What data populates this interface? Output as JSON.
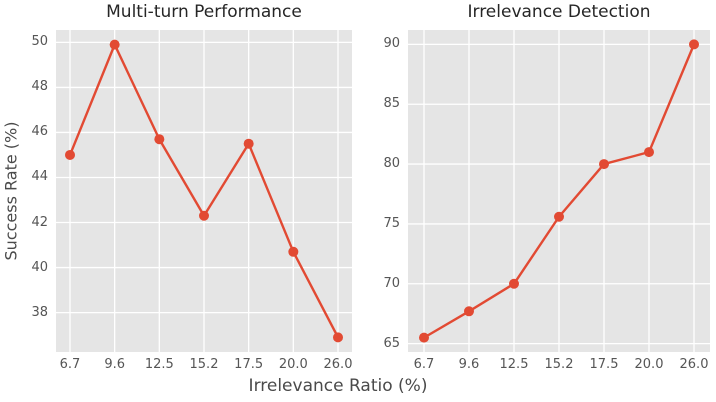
{
  "figure": {
    "background": "#ffffff",
    "plot_background": "#e5e5e5",
    "grid_color": "#ffffff",
    "line_color": "#e24a33",
    "tick_color": "#555555",
    "title_color": "#262626",
    "xlabel": "Irrelevance Ratio (%)",
    "ylabel": "Success Rate (%)"
  },
  "chart_data": [
    {
      "type": "line",
      "title": "Multi-turn Performance",
      "xlabel": "Irrelevance Ratio (%)",
      "ylabel": "Success Rate (%)",
      "categories": [
        "6.7",
        "9.6",
        "12.5",
        "15.2",
        "17.5",
        "20.0",
        "26.0"
      ],
      "values": [
        45.0,
        49.9,
        45.7,
        42.3,
        45.5,
        40.7,
        36.9
      ],
      "yticks": [
        38,
        40,
        42,
        44,
        46,
        48,
        50
      ],
      "ylim": [
        36.25,
        50.55
      ],
      "grid": true,
      "legend": false,
      "marker": "circle"
    },
    {
      "type": "line",
      "title": "Irrelevance Detection",
      "xlabel": "Irrelevance Ratio (%)",
      "ylabel": "",
      "categories": [
        "6.7",
        "9.6",
        "12.5",
        "15.2",
        "17.5",
        "20.0",
        "26.0"
      ],
      "values": [
        65.5,
        67.7,
        70.0,
        75.6,
        80.0,
        81.0,
        90.0
      ],
      "yticks": [
        65,
        70,
        75,
        80,
        85,
        90
      ],
      "ylim": [
        64.3,
        91.2
      ],
      "grid": true,
      "legend": false,
      "marker": "circle"
    }
  ]
}
